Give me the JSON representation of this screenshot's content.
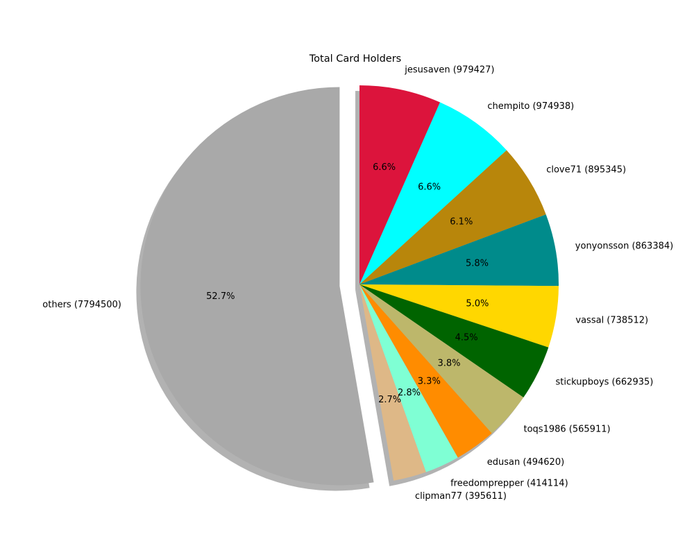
{
  "chart_data": {
    "type": "pie",
    "title": "Total Card Holders",
    "start_angle_deg": 90,
    "direction": "clockwise",
    "shadow": true,
    "slices": [
      {
        "label": "jesusaven (979427)",
        "value": 979427,
        "pct_label": "6.6%",
        "color": "#dc143c",
        "explode": 0
      },
      {
        "label": "chempito (974938)",
        "value": 974938,
        "pct_label": "6.6%",
        "color": "#00ffff",
        "explode": 0
      },
      {
        "label": "clove71 (895345)",
        "value": 895345,
        "pct_label": "6.1%",
        "color": "#b8860b",
        "explode": 0
      },
      {
        "label": "yonyonsson (863384)",
        "value": 863384,
        "pct_label": "5.8%",
        "color": "#008b8b",
        "explode": 0
      },
      {
        "label": "vassal (738512)",
        "value": 738512,
        "pct_label": "5.0%",
        "color": "#ffd700",
        "explode": 0
      },
      {
        "label": "stickupboys (662935)",
        "value": 662935,
        "pct_label": "4.5%",
        "color": "#006400",
        "explode": 0
      },
      {
        "label": "toqs1986 (565911)",
        "value": 565911,
        "pct_label": "3.8%",
        "color": "#bdb76b",
        "explode": 0
      },
      {
        "label": "edusan (494620)",
        "value": 494620,
        "pct_label": "3.3%",
        "color": "#ff8c00",
        "explode": 0
      },
      {
        "label": "freedomprepper (414114)",
        "value": 414114,
        "pct_label": "2.8%",
        "color": "#7fffd4",
        "explode": 0
      },
      {
        "label": "clipman77 (395611)",
        "value": 395611,
        "pct_label": "2.7%",
        "color": "#deb887",
        "explode": 0
      },
      {
        "label": "others (7794500)",
        "value": 7794500,
        "pct_label": "52.7%",
        "color": "#a9a9a9",
        "explode": 0.1
      }
    ]
  }
}
